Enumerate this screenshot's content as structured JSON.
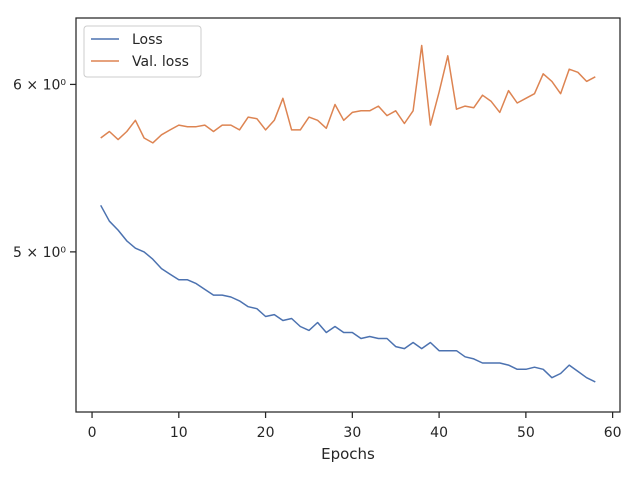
{
  "chart_data": {
    "type": "line",
    "xlabel": "Epochs",
    "ylabel": "",
    "yscale": "log",
    "xlim": [
      -1.85,
      60.85
    ],
    "ylim": [
      4.2,
      6.45
    ],
    "x_ticks": [
      0,
      10,
      20,
      30,
      40,
      50,
      60
    ],
    "x_tick_labels": [
      "0",
      "10",
      "20",
      "30",
      "40",
      "50",
      "60"
    ],
    "y_ticks": [
      5,
      6
    ],
    "y_tick_labels": [
      "5 × 10⁰",
      "6 × 10⁰"
    ],
    "grid": false,
    "legend": "top-left",
    "x": [
      1,
      2,
      3,
      4,
      5,
      6,
      7,
      8,
      9,
      10,
      11,
      12,
      13,
      14,
      15,
      16,
      17,
      18,
      19,
      20,
      21,
      22,
      23,
      24,
      25,
      26,
      27,
      28,
      29,
      30,
      31,
      32,
      33,
      34,
      35,
      36,
      37,
      38,
      39,
      40,
      41,
      42,
      43,
      44,
      45,
      46,
      47,
      48,
      49,
      50,
      51,
      52,
      53,
      54,
      55,
      56,
      57,
      58
    ],
    "series": [
      {
        "name": "Loss",
        "color": "#4c72b0",
        "values": [
          5.26,
          5.17,
          5.12,
          5.06,
          5.02,
          5.0,
          4.96,
          4.91,
          4.88,
          4.85,
          4.85,
          4.83,
          4.8,
          4.77,
          4.77,
          4.76,
          4.74,
          4.71,
          4.7,
          4.66,
          4.67,
          4.64,
          4.65,
          4.61,
          4.59,
          4.63,
          4.58,
          4.61,
          4.58,
          4.58,
          4.55,
          4.56,
          4.55,
          4.55,
          4.51,
          4.5,
          4.53,
          4.5,
          4.53,
          4.49,
          4.49,
          4.49,
          4.46,
          4.45,
          4.43,
          4.43,
          4.43,
          4.42,
          4.4,
          4.4,
          4.41,
          4.4,
          4.36,
          4.38,
          4.42,
          4.39,
          4.36,
          4.34
        ]
      },
      {
        "name": "Val. loss",
        "color": "#dd8452",
        "values": [
          5.66,
          5.7,
          5.65,
          5.7,
          5.77,
          5.66,
          5.63,
          5.68,
          5.71,
          5.74,
          5.73,
          5.73,
          5.74,
          5.7,
          5.74,
          5.74,
          5.71,
          5.79,
          5.78,
          5.71,
          5.77,
          5.91,
          5.71,
          5.71,
          5.79,
          5.77,
          5.72,
          5.87,
          5.77,
          5.82,
          5.83,
          5.83,
          5.86,
          5.8,
          5.83,
          5.75,
          5.83,
          6.26,
          5.74,
          5.95,
          6.19,
          5.84,
          5.86,
          5.85,
          5.93,
          5.89,
          5.82,
          5.96,
          5.88,
          5.91,
          5.94,
          6.07,
          6.02,
          5.94,
          6.1,
          6.08,
          6.02,
          6.05
        ]
      }
    ]
  }
}
